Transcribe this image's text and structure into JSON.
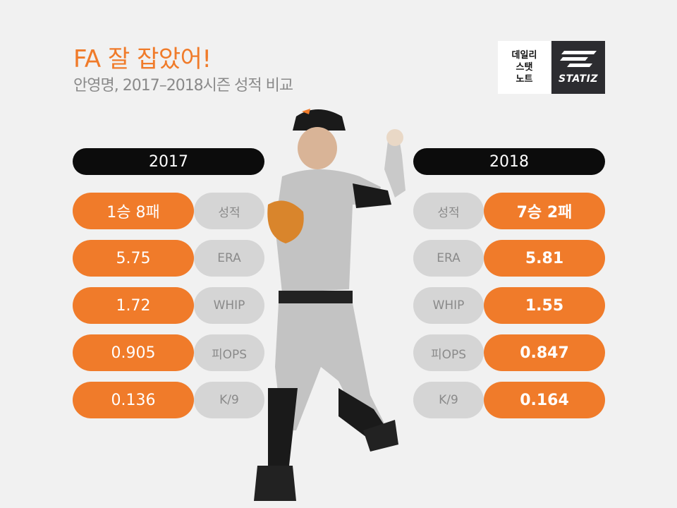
{
  "header": {
    "title": "FA 잘 잡았어!",
    "subtitle": "안영명, 2017–2018시즌 성적 비교"
  },
  "logo": {
    "line1": "데일리",
    "line2": "스탯",
    "line3": "노트",
    "brand": "STATIZ"
  },
  "colors": {
    "accent": "#f07b2a",
    "label_bg": "#d5d5d5",
    "year_bg": "#0c0c0c",
    "background": "#f1f1f1"
  },
  "left": {
    "year": "2017",
    "rows": [
      {
        "label": "성적",
        "value": "1승 8패"
      },
      {
        "label": "ERA",
        "value": "5.75"
      },
      {
        "label": "WHIP",
        "value": "1.72"
      },
      {
        "label": "피OPS",
        "value": "0.905"
      },
      {
        "label": "K/9",
        "value": "0.136"
      }
    ]
  },
  "right": {
    "year": "2018",
    "rows": [
      {
        "label": "성적",
        "value": "7승 2패"
      },
      {
        "label": "ERA",
        "value": "5.81"
      },
      {
        "label": "WHIP",
        "value": "1.55"
      },
      {
        "label": "피OPS",
        "value": "0.847"
      },
      {
        "label": "K/9",
        "value": "0.164"
      }
    ]
  }
}
